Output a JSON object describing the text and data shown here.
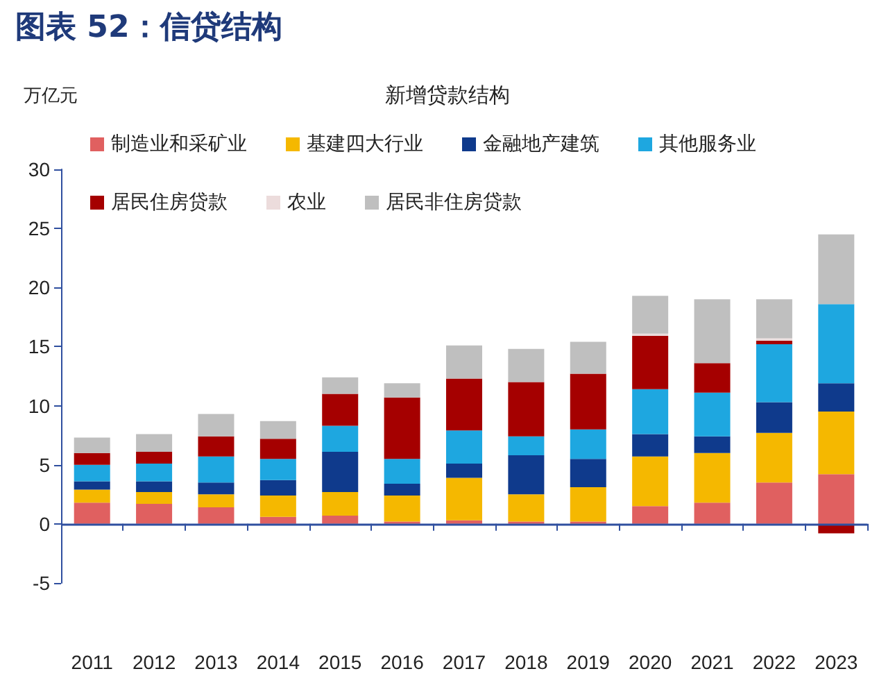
{
  "chart_data": {
    "type": "bar",
    "title": "图表 52：信贷结构",
    "subtitle": "新增贷款结构",
    "ylabel": "万亿元",
    "categories": [
      "2011",
      "2012",
      "2013",
      "2014",
      "2015",
      "2016",
      "2017",
      "2018",
      "2019",
      "2020",
      "2021",
      "2022",
      "2023"
    ],
    "stacked": true,
    "ylim": [
      -5,
      30
    ],
    "yticks": [
      -5,
      0,
      5,
      10,
      15,
      20,
      25,
      30
    ],
    "grid": false,
    "legend": "top",
    "ref_lines": [
      {
        "axis": "y",
        "value": 0,
        "color": "#2f4f9f"
      }
    ],
    "series": [
      {
        "name": "制造业和采矿业",
        "color": "#e06060",
        "values": [
          1.8,
          1.7,
          1.4,
          0.6,
          0.7,
          0.2,
          0.3,
          0.2,
          0.2,
          1.5,
          1.8,
          3.5,
          4.2
        ]
      },
      {
        "name": "基建四大行业",
        "color": "#f5b800",
        "values": [
          1.1,
          1.0,
          1.1,
          1.8,
          2.0,
          2.2,
          3.6,
          2.3,
          2.9,
          4.2,
          4.2,
          4.2,
          5.3
        ]
      },
      {
        "name": "金融地产建筑",
        "color": "#0f3a8c",
        "values": [
          0.7,
          0.9,
          1.0,
          1.3,
          3.4,
          1.0,
          1.2,
          3.3,
          2.4,
          1.9,
          1.4,
          2.6,
          2.4
        ]
      },
      {
        "name": "其他服务业",
        "color": "#1ea7e0",
        "values": [
          1.4,
          1.5,
          2.2,
          1.8,
          2.2,
          2.1,
          2.8,
          1.6,
          2.5,
          3.8,
          3.7,
          4.9,
          6.7
        ]
      },
      {
        "name": "居民住房贷款",
        "color": "#a50000",
        "values": [
          1.0,
          1.0,
          1.7,
          1.7,
          2.7,
          5.2,
          4.4,
          4.6,
          4.7,
          4.5,
          2.5,
          0.3,
          -0.8
        ]
      },
      {
        "name": "农业",
        "color": "#ecdcdc",
        "values": [
          null,
          null,
          null,
          null,
          null,
          null,
          null,
          null,
          null,
          0.2,
          null,
          0.2,
          null
        ]
      },
      {
        "name": "居民非住房贷款",
        "color": "#bfbfbf",
        "values": [
          1.3,
          1.5,
          1.9,
          1.5,
          1.4,
          1.2,
          2.8,
          2.8,
          2.7,
          3.2,
          5.4,
          3.3,
          5.9
        ]
      }
    ]
  }
}
